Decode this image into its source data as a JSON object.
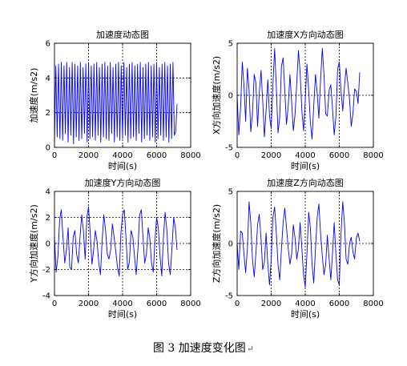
{
  "chart_data": [
    {
      "type": "line",
      "title": "加速度动态图",
      "xlabel": "时间(s)",
      "ylabel": "加速度(m/s2)",
      "xlim": [
        0,
        8000
      ],
      "ylim": [
        0,
        6
      ],
      "xticks": [
        "0",
        "2000",
        "4000",
        "6000",
        "8000"
      ],
      "yticks": [
        "0",
        "2",
        "4",
        "6"
      ],
      "grid": "dotted",
      "series": [
        {
          "color": "#0000ff",
          "x": [
            0,
            80,
            160,
            240,
            320,
            400,
            480,
            560,
            640,
            720,
            800,
            880,
            960,
            1040,
            1120,
            1200,
            1280,
            1360,
            1440,
            1520,
            1600,
            1680,
            1760,
            1840,
            1920,
            2000,
            2080,
            2160,
            2240,
            2320,
            2400,
            2480,
            2560,
            2640,
            2720,
            2800,
            2880,
            2960,
            3040,
            3120,
            3200,
            3280,
            3360,
            3440,
            3520,
            3600,
            3680,
            3760,
            3840,
            3920,
            4000,
            4080,
            4160,
            4240,
            4320,
            4400,
            4480,
            4560,
            4640,
            4720,
            4800,
            4880,
            4960,
            5040,
            5120,
            5200,
            5280,
            5360,
            5440,
            5520,
            5600,
            5680,
            5760,
            5840,
            5920,
            6000,
            6080,
            6160,
            6240,
            6320,
            6400,
            6480,
            6560,
            6640,
            6720,
            6800,
            6880,
            6960,
            7040,
            7120,
            7200
          ],
          "values": [
            0.3,
            4.7,
            0.6,
            4.8,
            0.5,
            4.9,
            0.4,
            4.7,
            0.8,
            4.9,
            0.3,
            4.6,
            0.7,
            4.9,
            0.2,
            4.8,
            0.6,
            4.7,
            0.4,
            4.9,
            0.5,
            4.6,
            0.8,
            4.8,
            0.3,
            4.9,
            0.5,
            4.7,
            0.6,
            4.8,
            0.4,
            4.9,
            0.7,
            4.6,
            0.3,
            4.8,
            0.6,
            4.9,
            0.5,
            4.7,
            0.4,
            4.9,
            0.8,
            4.6,
            0.3,
            4.8,
            0.6,
            4.9,
            0.4,
            4.7,
            0.5,
            4.9,
            0.7,
            4.6,
            0.3,
            4.8,
            0.5,
            4.9,
            0.6,
            4.7,
            0.4,
            4.8,
            0.8,
            4.9,
            0.3,
            4.6,
            0.5,
            4.8,
            0.7,
            4.9,
            0.4,
            4.7,
            0.6,
            4.8,
            0.3,
            4.9,
            0.5,
            4.6,
            0.7,
            4.8,
            0.4,
            4.9,
            0.6,
            4.7,
            0.3,
            4.8,
            0.5,
            4.9,
            0.7,
            0.9,
            2.5
          ]
        }
      ]
    },
    {
      "type": "line",
      "title": "加速度X方向动态图",
      "xlabel": "时间(s)",
      "ylabel": "X方向加速度(m/s2)",
      "xlim": [
        0,
        8000
      ],
      "ylim": [
        -5,
        5
      ],
      "xticks": [
        "0",
        "2000",
        "4000",
        "6000",
        "8000"
      ],
      "yticks": [
        "-5",
        "0",
        "5"
      ],
      "grid": "dotted",
      "series": [
        {
          "color": "#0000ff",
          "x": [
            0,
            100,
            200,
            300,
            400,
            500,
            600,
            700,
            800,
            900,
            1000,
            1100,
            1200,
            1300,
            1400,
            1500,
            1600,
            1700,
            1800,
            1900,
            2000,
            2100,
            2200,
            2300,
            2400,
            2500,
            2600,
            2700,
            2800,
            2900,
            3000,
            3100,
            3200,
            3300,
            3400,
            3500,
            3600,
            3700,
            3800,
            3900,
            4000,
            4100,
            4200,
            4300,
            4400,
            4500,
            4600,
            4700,
            4800,
            4900,
            5000,
            5100,
            5200,
            5300,
            5400,
            5500,
            5600,
            5700,
            5800,
            5900,
            6000,
            6100,
            6200,
            6300,
            6400,
            6500,
            6600,
            6700,
            6800,
            6900,
            7000,
            7100,
            7200
          ],
          "values": [
            0.0,
            -3.8,
            -1.2,
            3.2,
            1.0,
            -2.5,
            2.6,
            0.5,
            -3.5,
            -1.8,
            2.0,
            1.2,
            -3.0,
            0.2,
            2.4,
            -0.5,
            -4.0,
            -1.5,
            1.5,
            -2.0,
            -3.2,
            1.0,
            4.5,
            0.8,
            -3.6,
            -2.2,
            2.8,
            3.6,
            0.3,
            -2.8,
            -1.0,
            2.0,
            -0.6,
            -3.4,
            -1.8,
            1.2,
            4.3,
            2.2,
            -1.5,
            -3.4,
            -0.5,
            3.0,
            0.5,
            -2.6,
            -4.2,
            -1.0,
            2.0,
            0.2,
            -2.2,
            1.5,
            4.5,
            2.0,
            -1.8,
            -2.0,
            0.5,
            1.0,
            -1.2,
            -3.8,
            -2.0,
            2.5,
            3.2,
            0.5,
            -1.5,
            0.8,
            2.6,
            1.2,
            -0.4,
            -3.0,
            -1.8,
            0.6,
            0.4,
            -0.8,
            2.2
          ]
        }
      ]
    },
    {
      "type": "line",
      "title": "加速度Y方向动态图",
      "xlabel": "时间(s)",
      "ylabel": "Y方向加速度(m/s2)",
      "xlim": [
        0,
        8000
      ],
      "ylim": [
        -4,
        4
      ],
      "xticks": [
        "0",
        "2000",
        "4000",
        "6000",
        "8000"
      ],
      "yticks": [
        "-4",
        "-2",
        "0",
        "2",
        "4"
      ],
      "grid": "dotted",
      "series": [
        {
          "color": "#0000ff",
          "x": [
            0,
            100,
            200,
            300,
            400,
            500,
            600,
            700,
            800,
            900,
            1000,
            1100,
            1200,
            1300,
            1400,
            1500,
            1600,
            1700,
            1800,
            1900,
            2000,
            2100,
            2200,
            2300,
            2400,
            2500,
            2600,
            2700,
            2800,
            2900,
            3000,
            3100,
            3200,
            3300,
            3400,
            3500,
            3600,
            3700,
            3800,
            3900,
            4000,
            4100,
            4200,
            4300,
            4400,
            4500,
            4600,
            4700,
            4800,
            4900,
            5000,
            5100,
            5200,
            5300,
            5400,
            5500,
            5600,
            5700,
            5800,
            5900,
            6000,
            6100,
            6200,
            6300,
            6400,
            6500,
            6600,
            6700,
            6800,
            6900,
            7000,
            7100,
            7200
          ],
          "values": [
            0.5,
            -2.2,
            -1.0,
            1.8,
            2.6,
            0.5,
            -1.5,
            -0.5,
            1.2,
            -1.8,
            -2.0,
            0.5,
            1.0,
            -0.8,
            -1.5,
            0.5,
            2.2,
            1.0,
            -1.2,
            2.0,
            2.8,
            0.8,
            -1.6,
            -0.5,
            1.0,
            0.2,
            -1.5,
            -2.4,
            0.2,
            2.2,
            1.0,
            -0.8,
            -1.2,
            -0.5,
            1.5,
            0.5,
            -0.6,
            -1.8,
            -2.5,
            0.8,
            2.2,
            2.6,
            0.4,
            -2.0,
            -1.4,
            1.0,
            0.5,
            -1.0,
            -2.4,
            -0.5,
            2.2,
            2.6,
            0.5,
            -1.5,
            -0.8,
            1.2,
            0.4,
            -1.5,
            -2.2,
            0.2,
            2.0,
            1.2,
            -1.0,
            -2.5,
            0.5,
            2.4,
            1.0,
            -1.5,
            -2.4,
            -0.4,
            2.0,
            1.2,
            -0.5
          ]
        }
      ]
    },
    {
      "type": "line",
      "title": "加速度Z方向动态图",
      "xlabel": "时间(s)",
      "ylabel": "Z方向加速度(m/s2)",
      "xlim": [
        0,
        8000
      ],
      "ylim": [
        -5,
        5
      ],
      "xticks": [
        "0",
        "2000",
        "4000",
        "6000",
        "8000"
      ],
      "yticks": [
        "-5",
        "0",
        "5"
      ],
      "grid": "dotted",
      "series": [
        {
          "color": "#0000ff",
          "x": [
            0,
            100,
            200,
            300,
            400,
            500,
            600,
            700,
            800,
            900,
            1000,
            1100,
            1200,
            1300,
            1400,
            1500,
            1600,
            1700,
            1800,
            1900,
            2000,
            2100,
            2200,
            2300,
            2400,
            2500,
            2600,
            2700,
            2800,
            2900,
            3000,
            3100,
            3200,
            3300,
            3400,
            3500,
            3600,
            3700,
            3800,
            3900,
            4000,
            4100,
            4200,
            4300,
            4400,
            4500,
            4600,
            4700,
            4800,
            4900,
            5000,
            5100,
            5200,
            5300,
            5400,
            5500,
            5600,
            5700,
            5800,
            5900,
            6000,
            6100,
            6200,
            6300,
            6400,
            6500,
            6600,
            6700,
            6800,
            6900,
            7000,
            7100,
            7200
          ],
          "values": [
            0.0,
            -2.5,
            1.2,
            1.0,
            -1.0,
            -2.8,
            -0.5,
            4.0,
            2.0,
            -1.5,
            -3.2,
            -1.0,
            1.8,
            2.8,
            0.5,
            -2.5,
            -1.8,
            1.0,
            -2.0,
            -4.0,
            -1.5,
            2.5,
            3.5,
            1.0,
            -2.0,
            -3.5,
            -0.5,
            2.0,
            3.4,
            1.5,
            -0.5,
            -2.0,
            -1.0,
            1.8,
            0.5,
            -1.5,
            -0.5,
            2.0,
            -0.5,
            -3.0,
            -4.2,
            -1.0,
            3.0,
            1.5,
            -2.0,
            -3.8,
            -0.5,
            2.5,
            3.8,
            1.0,
            -1.2,
            -3.0,
            -2.0,
            0.8,
            -1.5,
            -3.5,
            -1.0,
            2.0,
            -1.0,
            -3.5,
            -4.0,
            1.0,
            4.0,
            2.0,
            -1.5,
            -2.0,
            0.0,
            0.6,
            -0.8,
            -1.5,
            0.5,
            1.0,
            0.2
          ]
        }
      ]
    }
  ],
  "caption": {
    "label": "图 3",
    "text": "加速度变化图",
    "return_mark": "↵"
  }
}
